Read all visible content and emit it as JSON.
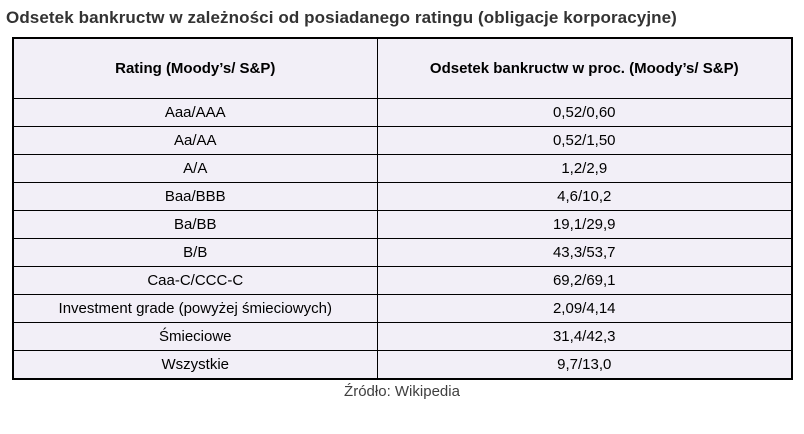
{
  "title": "Odsetek bankructw w zależności od posiadanego ratingu (obligacje korporacyjne)",
  "table": {
    "headers": [
      "Rating (Moody’s/ S&P)",
      "Odsetek bankructw w proc. (Moody’s/ S&P)"
    ],
    "rows": [
      [
        "Aaa/AAA",
        "0,52/0,60"
      ],
      [
        "Aa/AA",
        "0,52/1,50"
      ],
      [
        "A/A",
        "1,2/2,9"
      ],
      [
        "Baa/BBB",
        "4,6/10,2"
      ],
      [
        "Ba/BB",
        "19,1/29,9"
      ],
      [
        "B/B",
        "43,3/53,7"
      ],
      [
        "Caa-C/CCC-C",
        "69,2/69,1"
      ],
      [
        "Investment grade (powyżej śmieciowych)",
        "2,09/4,14"
      ],
      [
        "Śmieciowe",
        "31,4/42,3"
      ],
      [
        "Wszystkie",
        "9,7/13,0"
      ]
    ]
  },
  "source": "Źródło: Wikipedia",
  "colors": {
    "cell_background": "#f2eff7",
    "border": "#000000",
    "title_text": "#333333",
    "cell_text": "#000000",
    "source_text": "#3f3f3f"
  },
  "chart_data": {
    "type": "table",
    "title": "Odsetek bankructw w zależności od posiadanego ratingu (obligacje korporacyjne)",
    "columns": [
      "Rating (Moody’s/ S&P)",
      "Odsetek bankructw w proc. (Moody’s/ S&P)"
    ],
    "rows": [
      {
        "rating": "Aaa/AAA",
        "odsetek_bankructw_proc": "0,52/0,60"
      },
      {
        "rating": "Aa/AA",
        "odsetek_bankructw_proc": "0,52/1,50"
      },
      {
        "rating": "A/A",
        "odsetek_bankructw_proc": "1,2/2,9"
      },
      {
        "rating": "Baa/BBB",
        "odsetek_bankructw_proc": "4,6/10,2"
      },
      {
        "rating": "Ba/BB",
        "odsetek_bankructw_proc": "19,1/29,9"
      },
      {
        "rating": "B/B",
        "odsetek_bankructw_proc": "43,3/53,7"
      },
      {
        "rating": "Caa-C/CCC-C",
        "odsetek_bankructw_proc": "69,2/69,1"
      },
      {
        "rating": "Investment grade (powyżej śmieciowych)",
        "odsetek_bankructw_proc": "2,09/4,14"
      },
      {
        "rating": "Śmieciowe",
        "odsetek_bankructw_proc": "31,4/42,3"
      },
      {
        "rating": "Wszystkie",
        "odsetek_bankructw_proc": "9,7/13,0"
      }
    ],
    "source": "Źródło: Wikipedia",
    "legend_position": "none",
    "grid": "full-borders"
  }
}
